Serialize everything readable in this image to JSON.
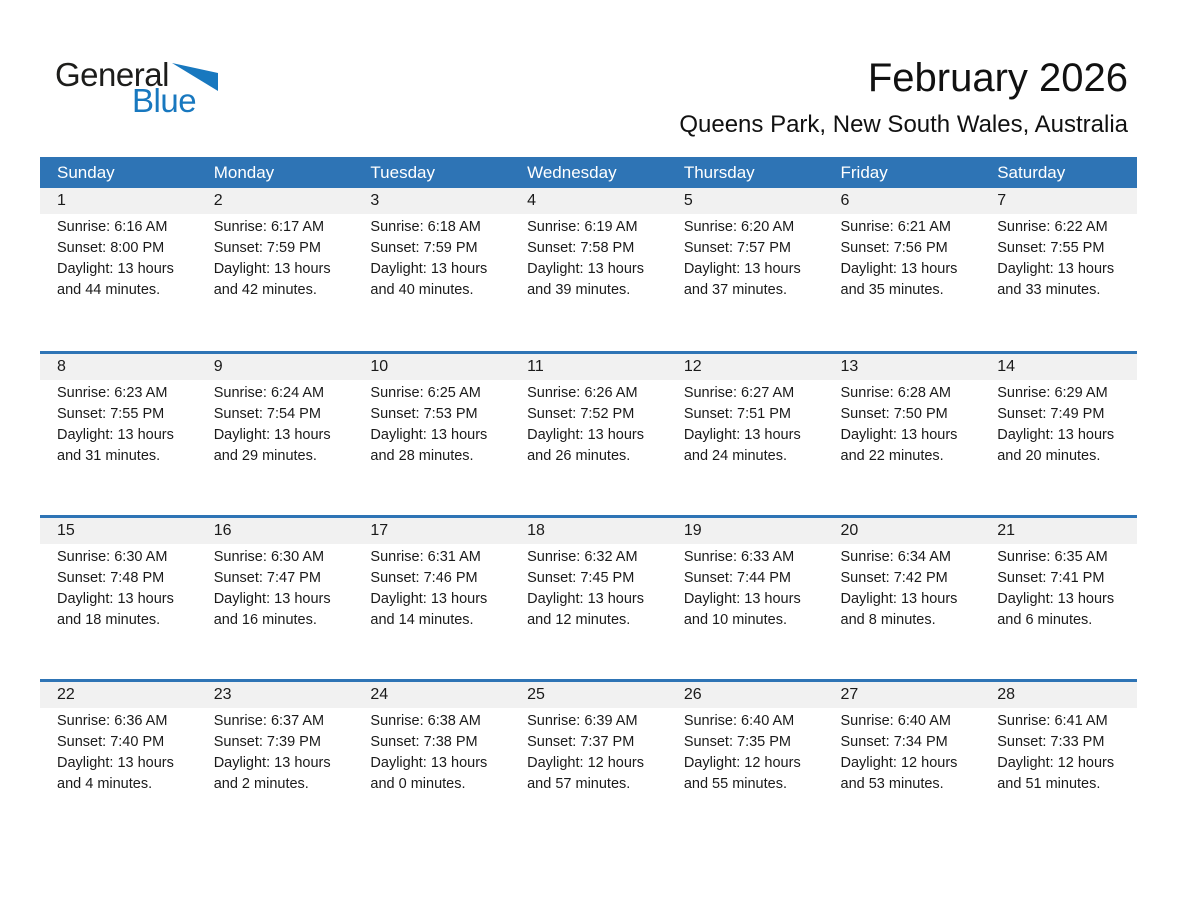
{
  "page": {
    "logo": {
      "word1": "General",
      "word2": "Blue"
    },
    "title": "February 2026",
    "subtitle": "Queens Park, New South Wales, Australia"
  },
  "calendar": {
    "day_headers": [
      "Sunday",
      "Monday",
      "Tuesday",
      "Wednesday",
      "Thursday",
      "Friday",
      "Saturday"
    ],
    "labels": {
      "sunrise": "Sunrise:",
      "sunset": "Sunset:",
      "daylight": "Daylight:"
    },
    "weeks": [
      [
        {
          "date": 1,
          "sunrise": "6:16 AM",
          "sunset": "8:00 PM",
          "daylight": "13 hours and 44 minutes."
        },
        {
          "date": 2,
          "sunrise": "6:17 AM",
          "sunset": "7:59 PM",
          "daylight": "13 hours and 42 minutes."
        },
        {
          "date": 3,
          "sunrise": "6:18 AM",
          "sunset": "7:59 PM",
          "daylight": "13 hours and 40 minutes."
        },
        {
          "date": 4,
          "sunrise": "6:19 AM",
          "sunset": "7:58 PM",
          "daylight": "13 hours and 39 minutes."
        },
        {
          "date": 5,
          "sunrise": "6:20 AM",
          "sunset": "7:57 PM",
          "daylight": "13 hours and 37 minutes."
        },
        {
          "date": 6,
          "sunrise": "6:21 AM",
          "sunset": "7:56 PM",
          "daylight": "13 hours and 35 minutes."
        },
        {
          "date": 7,
          "sunrise": "6:22 AM",
          "sunset": "7:55 PM",
          "daylight": "13 hours and 33 minutes."
        }
      ],
      [
        {
          "date": 8,
          "sunrise": "6:23 AM",
          "sunset": "7:55 PM",
          "daylight": "13 hours and 31 minutes."
        },
        {
          "date": 9,
          "sunrise": "6:24 AM",
          "sunset": "7:54 PM",
          "daylight": "13 hours and 29 minutes."
        },
        {
          "date": 10,
          "sunrise": "6:25 AM",
          "sunset": "7:53 PM",
          "daylight": "13 hours and 28 minutes."
        },
        {
          "date": 11,
          "sunrise": "6:26 AM",
          "sunset": "7:52 PM",
          "daylight": "13 hours and 26 minutes."
        },
        {
          "date": 12,
          "sunrise": "6:27 AM",
          "sunset": "7:51 PM",
          "daylight": "13 hours and 24 minutes."
        },
        {
          "date": 13,
          "sunrise": "6:28 AM",
          "sunset": "7:50 PM",
          "daylight": "13 hours and 22 minutes."
        },
        {
          "date": 14,
          "sunrise": "6:29 AM",
          "sunset": "7:49 PM",
          "daylight": "13 hours and 20 minutes."
        }
      ],
      [
        {
          "date": 15,
          "sunrise": "6:30 AM",
          "sunset": "7:48 PM",
          "daylight": "13 hours and 18 minutes."
        },
        {
          "date": 16,
          "sunrise": "6:30 AM",
          "sunset": "7:47 PM",
          "daylight": "13 hours and 16 minutes."
        },
        {
          "date": 17,
          "sunrise": "6:31 AM",
          "sunset": "7:46 PM",
          "daylight": "13 hours and 14 minutes."
        },
        {
          "date": 18,
          "sunrise": "6:32 AM",
          "sunset": "7:45 PM",
          "daylight": "13 hours and 12 minutes."
        },
        {
          "date": 19,
          "sunrise": "6:33 AM",
          "sunset": "7:44 PM",
          "daylight": "13 hours and 10 minutes."
        },
        {
          "date": 20,
          "sunrise": "6:34 AM",
          "sunset": "7:42 PM",
          "daylight": "13 hours and 8 minutes."
        },
        {
          "date": 21,
          "sunrise": "6:35 AM",
          "sunset": "7:41 PM",
          "daylight": "13 hours and 6 minutes."
        }
      ],
      [
        {
          "date": 22,
          "sunrise": "6:36 AM",
          "sunset": "7:40 PM",
          "daylight": "13 hours and 4 minutes."
        },
        {
          "date": 23,
          "sunrise": "6:37 AM",
          "sunset": "7:39 PM",
          "daylight": "13 hours and 2 minutes."
        },
        {
          "date": 24,
          "sunrise": "6:38 AM",
          "sunset": "7:38 PM",
          "daylight": "13 hours and 0 minutes."
        },
        {
          "date": 25,
          "sunrise": "6:39 AM",
          "sunset": "7:37 PM",
          "daylight": "12 hours and 57 minutes."
        },
        {
          "date": 26,
          "sunrise": "6:40 AM",
          "sunset": "7:35 PM",
          "daylight": "12 hours and 55 minutes."
        },
        {
          "date": 27,
          "sunrise": "6:40 AM",
          "sunset": "7:34 PM",
          "daylight": "12 hours and 53 minutes."
        },
        {
          "date": 28,
          "sunrise": "6:41 AM",
          "sunset": "7:33 PM",
          "daylight": "12 hours and 51 minutes."
        }
      ]
    ]
  },
  "colors": {
    "calendar_blue": "#2e74b5",
    "date_strip_gray": "#f1f1f1",
    "logo_blue": "#1878bf",
    "text": "#1a1a1a"
  }
}
